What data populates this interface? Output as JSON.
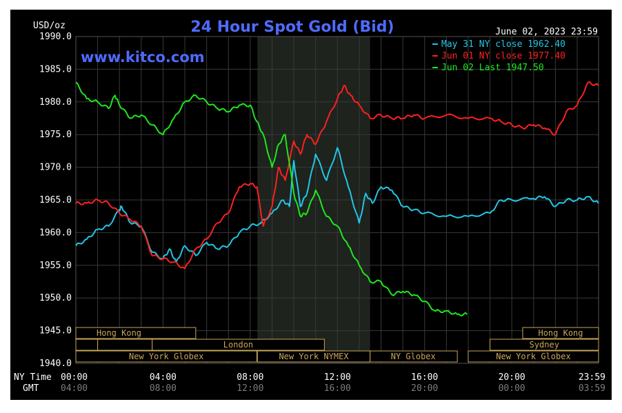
{
  "chart_data": {
    "type": "line",
    "title": "24 Hour Spot Gold (Bid)",
    "watermark": "www.kitco.com",
    "date_label": "June 02, 2023 23:59",
    "y_unit": "USD/oz",
    "ylim": [
      1940,
      1990
    ],
    "y_ticks": [
      "1990.0",
      "1985.0",
      "1980.0",
      "1975.0",
      "1970.0",
      "1965.0",
      "1960.0",
      "1955.0",
      "1950.0",
      "1945.0",
      "1940.0"
    ],
    "x_ticks_ny": [
      "00:00",
      "04:00",
      "08:00",
      "12:00",
      "16:00",
      "20:00",
      "23:59"
    ],
    "x_ticks_gmt": [
      "04:00",
      "08:00",
      "12:00",
      "16:00",
      "20:00",
      "00:00",
      "03:59"
    ],
    "x_row_labels": {
      "ny": "NY Time",
      "gmt": "GMT"
    },
    "grid": true,
    "legend_position": "top-right",
    "shaded_session_hours": [
      8.33,
      13.5
    ],
    "colors": {
      "background": "#000000",
      "grid": "#3a3a3a",
      "axis_text": "#ffffff",
      "title": "#4f6bff",
      "session_box": "#c8a65a",
      "shade": "#1e231e"
    },
    "series": [
      {
        "name": "May 31 NY close 1962.40",
        "color": "#22c7e8",
        "x": [
          0.0,
          0.5,
          1.0,
          1.5,
          2.0,
          2.1,
          2.5,
          3.0,
          3.5,
          4.0,
          4.3,
          4.6,
          5.0,
          5.5,
          6.0,
          6.5,
          7.0,
          7.5,
          8.0,
          8.5,
          9.0,
          9.5,
          9.8,
          10.0,
          10.3,
          10.6,
          11.0,
          11.5,
          12.0,
          12.5,
          13.0,
          13.3,
          13.6,
          14.0,
          14.5,
          15.0,
          15.5,
          16.0,
          17.0,
          18.0,
          19.0,
          19.5,
          20.0,
          21.0,
          21.5,
          22.0,
          22.5,
          23.0,
          23.5,
          23.98
        ],
        "y": [
          1958.0,
          1959.0,
          1960.5,
          1961.0,
          1963.5,
          1964.0,
          1961.5,
          1961.0,
          1957.0,
          1956.0,
          1957.5,
          1955.5,
          1958.0,
          1956.5,
          1958.5,
          1957.5,
          1958.0,
          1960.0,
          1961.0,
          1961.5,
          1963.0,
          1965.0,
          1964.0,
          1971.0,
          1964.0,
          1966.0,
          1972.0,
          1968.0,
          1973.0,
          1967.0,
          1961.5,
          1966.0,
          1964.5,
          1967.0,
          1966.5,
          1964.0,
          1963.5,
          1963.0,
          1962.5,
          1962.5,
          1963.0,
          1965.0,
          1965.0,
          1965.2,
          1965.5,
          1964.0,
          1965.0,
          1965.0,
          1965.5,
          1964.5
        ]
      },
      {
        "name": "Jun 01 NY close 1977.40",
        "color": "#ff2020",
        "x": [
          0.0,
          0.5,
          1.0,
          1.5,
          2.0,
          2.5,
          3.0,
          3.5,
          4.0,
          4.5,
          5.0,
          5.5,
          6.0,
          6.5,
          7.0,
          7.5,
          8.0,
          8.3,
          8.6,
          9.0,
          9.3,
          9.6,
          10.0,
          10.3,
          10.6,
          11.0,
          11.5,
          12.0,
          12.3,
          12.6,
          13.0,
          13.5,
          14.0,
          14.5,
          15.0,
          15.5,
          16.0,
          17.0,
          18.0,
          19.0,
          19.5,
          20.0,
          20.5,
          21.0,
          21.5,
          22.0,
          22.5,
          23.0,
          23.5,
          23.98
        ],
        "y": [
          1964.5,
          1964.5,
          1965.0,
          1964.5,
          1963.0,
          1962.0,
          1961.0,
          1956.5,
          1956.0,
          1955.5,
          1954.5,
          1957.5,
          1959.0,
          1961.5,
          1963.0,
          1967.0,
          1967.5,
          1967.0,
          1961.0,
          1964.0,
          1970.0,
          1968.0,
          1974.0,
          1972.0,
          1975.0,
          1973.5,
          1977.0,
          1980.5,
          1982.5,
          1981.0,
          1979.5,
          1977.5,
          1978.0,
          1977.5,
          1977.5,
          1978.0,
          1977.5,
          1978.0,
          1977.5,
          1977.5,
          1977.0,
          1976.5,
          1976.0,
          1976.5,
          1976.0,
          1975.0,
          1978.5,
          1979.5,
          1983.0,
          1982.5
        ]
      },
      {
        "name": "Jun 02 Last 1947.50",
        "color": "#1de81d",
        "x": [
          0.0,
          0.5,
          1.0,
          1.5,
          1.8,
          2.0,
          2.5,
          3.0,
          3.5,
          4.0,
          4.5,
          5.0,
          5.5,
          6.0,
          6.5,
          7.0,
          7.5,
          8.0,
          8.3,
          8.6,
          9.0,
          9.3,
          9.6,
          10.0,
          10.3,
          10.6,
          11.0,
          11.5,
          12.0,
          12.5,
          13.0,
          13.5,
          14.0,
          14.5,
          15.0,
          15.5,
          16.0,
          16.5,
          17.0,
          17.5,
          17.95
        ],
        "y": [
          1983.0,
          1980.5,
          1980.0,
          1979.0,
          1981.0,
          1979.5,
          1977.5,
          1978.0,
          1976.5,
          1975.0,
          1977.5,
          1980.0,
          1981.0,
          1980.0,
          1979.0,
          1978.5,
          1979.5,
          1979.5,
          1977.0,
          1975.0,
          1970.0,
          1973.5,
          1975.0,
          1966.0,
          1962.5,
          1963.0,
          1966.5,
          1962.5,
          1961.0,
          1958.0,
          1955.0,
          1952.5,
          1952.5,
          1950.5,
          1951.0,
          1950.5,
          1949.5,
          1948.0,
          1948.0,
          1947.5,
          1947.5
        ]
      }
    ],
    "sessions": [
      {
        "label": "Hong Kong",
        "start": 0.0,
        "end": 5.5,
        "row": 0,
        "label_align": "start"
      },
      {
        "label": "Hong Kong",
        "start": 20.5,
        "end": 23.98,
        "row": 0,
        "label_align": "middle"
      },
      {
        "label": "",
        "start": 0.0,
        "end": 1.0,
        "row": 1,
        "label_align": "middle"
      },
      {
        "label": "London",
        "start": 3.5,
        "end": 11.4,
        "row": 1,
        "label_align": "middle"
      },
      {
        "label": "",
        "start": 1.0,
        "end": 3.5,
        "row": 1,
        "label_align": "middle"
      },
      {
        "label": "Sydney",
        "start": 19.0,
        "end": 23.98,
        "row": 1,
        "label_align": "middle"
      },
      {
        "label": "New York Globex",
        "start": 0.0,
        "end": 8.3,
        "row": 2,
        "label_align": "middle"
      },
      {
        "label": "New York NYMEX",
        "start": 8.33,
        "end": 13.5,
        "row": 2,
        "label_align": "middle"
      },
      {
        "label": "NY Globex",
        "start": 13.5,
        "end": 17.5,
        "row": 2,
        "label_align": "start"
      },
      {
        "label": "New York Globex",
        "start": 18.0,
        "end": 23.98,
        "row": 2,
        "label_align": "middle"
      }
    ]
  }
}
